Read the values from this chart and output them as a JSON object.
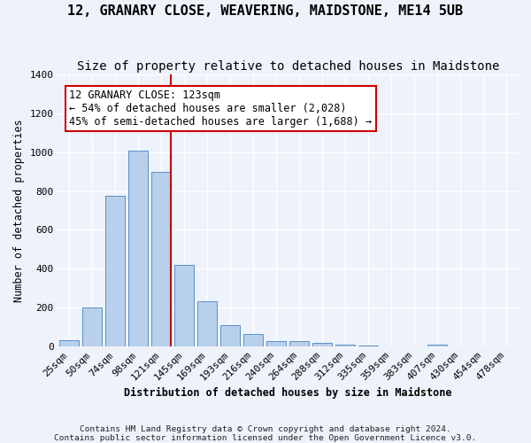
{
  "title": "12, GRANARY CLOSE, WEAVERING, MAIDSTONE, ME14 5UB",
  "subtitle": "Size of property relative to detached houses in Maidstone",
  "xlabel": "Distribution of detached houses by size in Maidstone",
  "ylabel": "Number of detached properties",
  "categories": [
    "25sqm",
    "50sqm",
    "74sqm",
    "98sqm",
    "121sqm",
    "145sqm",
    "169sqm",
    "193sqm",
    "216sqm",
    "240sqm",
    "264sqm",
    "288sqm",
    "312sqm",
    "335sqm",
    "359sqm",
    "383sqm",
    "407sqm",
    "430sqm",
    "454sqm",
    "478sqm"
  ],
  "values": [
    30,
    200,
    775,
    1010,
    900,
    420,
    230,
    110,
    65,
    25,
    25,
    15,
    10,
    5,
    0,
    0,
    10,
    0,
    0,
    0
  ],
  "bar_color": "#b8d0eb",
  "bar_edge_color": "#5b8fc9",
  "vline_color": "#cc0000",
  "vline_pos": 4.425,
  "annotation_text": "12 GRANARY CLOSE: 123sqm\n← 54% of detached houses are smaller (2,028)\n45% of semi-detached houses are larger (1,688) →",
  "annotation_box_color": "#ffffff",
  "annotation_box_edge": "#cc0000",
  "ylim": [
    0,
    1400
  ],
  "yticks": [
    0,
    200,
    400,
    600,
    800,
    1000,
    1200,
    1400
  ],
  "footer1": "Contains HM Land Registry data © Crown copyright and database right 2024.",
  "footer2": "Contains public sector information licensed under the Open Government Licence v3.0.",
  "bg_color": "#eef2fa",
  "title_fontsize": 11,
  "subtitle_fontsize": 10,
  "label_fontsize": 8.5,
  "tick_fontsize": 8,
  "footer_fontsize": 6.8
}
